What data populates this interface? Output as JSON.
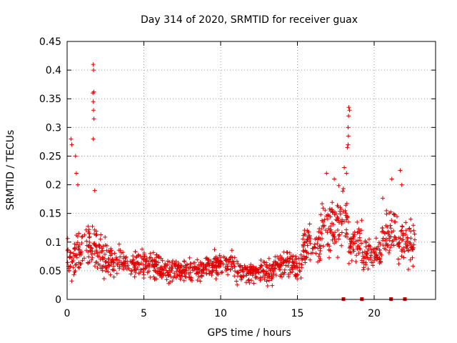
{
  "chart_data": {
    "type": "scatter",
    "title": "Day 314 of 2020, SRMTID for receiver guax",
    "xlabel": "GPS time / hours",
    "ylabel": "SRMTID / TECUs",
    "xlim": [
      0,
      24
    ],
    "ylim": [
      0,
      0.45
    ],
    "xticks": [
      0,
      5,
      10,
      15,
      20
    ],
    "xtick_labels": [
      "0",
      "5",
      "10",
      "15",
      "20"
    ],
    "yticks": [
      0,
      0.05,
      0.1,
      0.15,
      0.2,
      0.25,
      0.3,
      0.35,
      0.4,
      0.45
    ],
    "ytick_labels": [
      "0",
      "0.05",
      "0.1",
      "0.15",
      "0.2",
      "0.25",
      "0.3",
      "0.35",
      "0.4",
      "0.45"
    ],
    "grid": true,
    "marker": "+",
    "color": "#e00000",
    "series": [
      {
        "name": "SRMTID",
        "segments": [
          {
            "x0": 0.0,
            "x1": 0.6,
            "base": 0.07,
            "spread": 0.04
          },
          {
            "x0": 0.6,
            "x1": 1.5,
            "base": 0.09,
            "spread": 0.035
          },
          {
            "x0": 1.5,
            "x1": 2.2,
            "base": 0.09,
            "spread": 0.04
          },
          {
            "x0": 2.2,
            "x1": 3.5,
            "base": 0.07,
            "spread": 0.03
          },
          {
            "x0": 3.5,
            "x1": 6.0,
            "base": 0.06,
            "spread": 0.022
          },
          {
            "x0": 6.0,
            "x1": 9.0,
            "base": 0.052,
            "spread": 0.02
          },
          {
            "x0": 9.0,
            "x1": 11.0,
            "base": 0.06,
            "spread": 0.022
          },
          {
            "x0": 11.0,
            "x1": 13.5,
            "base": 0.047,
            "spread": 0.02
          },
          {
            "x0": 13.5,
            "x1": 15.3,
            "base": 0.06,
            "spread": 0.025
          },
          {
            "x0": 15.3,
            "x1": 16.5,
            "base": 0.095,
            "spread": 0.035
          },
          {
            "x0": 16.5,
            "x1": 17.5,
            "base": 0.125,
            "spread": 0.045
          },
          {
            "x0": 17.5,
            "x1": 18.3,
            "base": 0.14,
            "spread": 0.05
          },
          {
            "x0": 18.3,
            "x1": 19.2,
            "base": 0.1,
            "spread": 0.035
          },
          {
            "x0": 19.2,
            "x1": 20.5,
            "base": 0.08,
            "spread": 0.025
          },
          {
            "x0": 20.5,
            "x1": 21.5,
            "base": 0.12,
            "spread": 0.04
          },
          {
            "x0": 21.5,
            "x1": 22.2,
            "base": 0.1,
            "spread": 0.04
          },
          {
            "x0": 22.2,
            "x1": 22.7,
            "base": 0.1,
            "spread": 0.04
          }
        ],
        "peaks": [
          {
            "x": 0.25,
            "y": 0.28
          },
          {
            "x": 0.3,
            "y": 0.27
          },
          {
            "x": 0.55,
            "y": 0.25
          },
          {
            "x": 0.6,
            "y": 0.22
          },
          {
            "x": 0.7,
            "y": 0.2
          },
          {
            "x": 1.7,
            "y": 0.41
          },
          {
            "x": 1.72,
            "y": 0.4
          },
          {
            "x": 1.68,
            "y": 0.36
          },
          {
            "x": 1.74,
            "y": 0.362
          },
          {
            "x": 1.7,
            "y": 0.345
          },
          {
            "x": 1.72,
            "y": 0.33
          },
          {
            "x": 1.75,
            "y": 0.315
          },
          {
            "x": 1.7,
            "y": 0.28
          },
          {
            "x": 1.8,
            "y": 0.19
          },
          {
            "x": 16.9,
            "y": 0.22
          },
          {
            "x": 17.4,
            "y": 0.21
          },
          {
            "x": 18.05,
            "y": 0.23
          },
          {
            "x": 18.2,
            "y": 0.22
          },
          {
            "x": 18.25,
            "y": 0.265
          },
          {
            "x": 18.3,
            "y": 0.27
          },
          {
            "x": 18.32,
            "y": 0.285
          },
          {
            "x": 18.3,
            "y": 0.3
          },
          {
            "x": 18.33,
            "y": 0.32
          },
          {
            "x": 18.35,
            "y": 0.335
          },
          {
            "x": 18.4,
            "y": 0.33
          },
          {
            "x": 21.15,
            "y": 0.21
          },
          {
            "x": 21.7,
            "y": 0.225
          },
          {
            "x": 21.8,
            "y": 0.2
          }
        ]
      }
    ],
    "markers_on_xaxis": [
      18.0,
      19.2,
      21.1,
      22.0
    ]
  }
}
